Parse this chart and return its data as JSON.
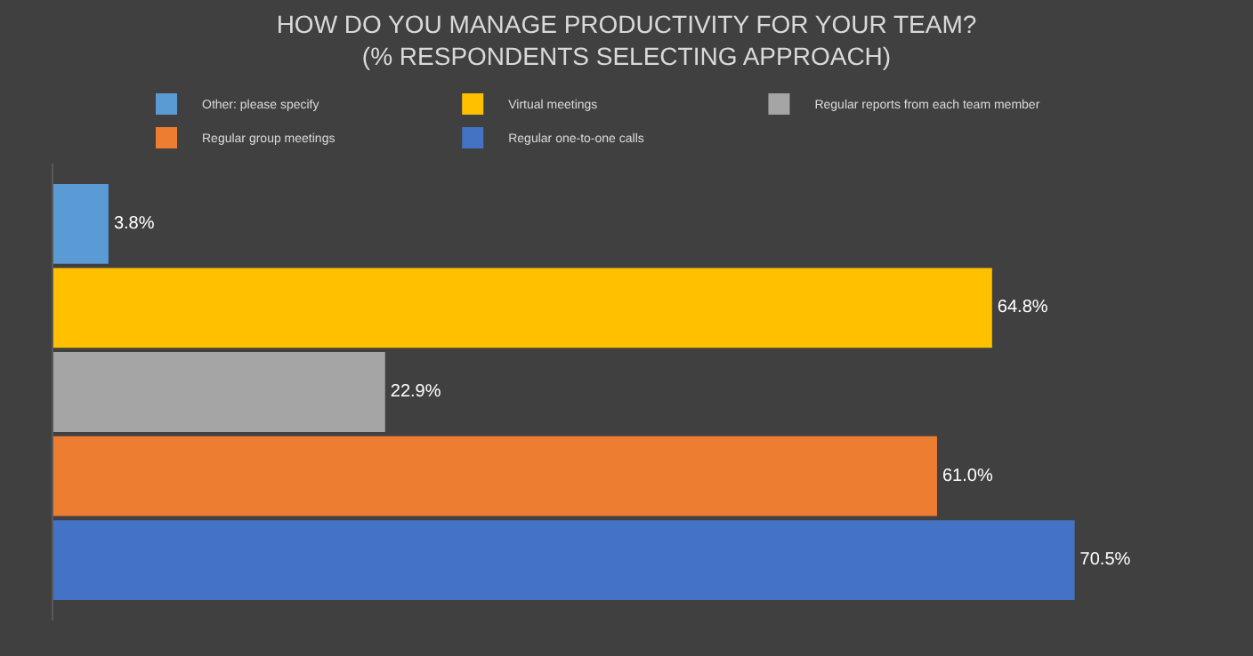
{
  "chart_data": {
    "type": "bar",
    "orientation": "horizontal",
    "title": "HOW DO YOU MANAGE PRODUCTIVITY FOR YOUR TEAM?\n(% RESPONDENTS SELECTING APPROACH)",
    "categories": [
      null
    ],
    "series": [
      {
        "name": "Other: please specify",
        "color": "#5b9bd5",
        "values": [
          3.8
        ],
        "value_labels": [
          "3.8%"
        ]
      },
      {
        "name": "Virtual meetings",
        "color": "#ffc000",
        "values": [
          64.8
        ],
        "value_labels": [
          "64.8%"
        ]
      },
      {
        "name": "Regular reports from each team member",
        "color": "#a5a5a5",
        "values": [
          22.9
        ],
        "value_labels": [
          "22.9%"
        ]
      },
      {
        "name": "Regular group meetings",
        "color": "#ed7d31",
        "values": [
          61.0
        ],
        "value_labels": [
          "61.0%"
        ]
      },
      {
        "name": "Regular one-to-one calls",
        "color": "#4472c4",
        "values": [
          70.5
        ],
        "value_labels": [
          "70.5%"
        ]
      }
    ],
    "legend": "top"
  }
}
